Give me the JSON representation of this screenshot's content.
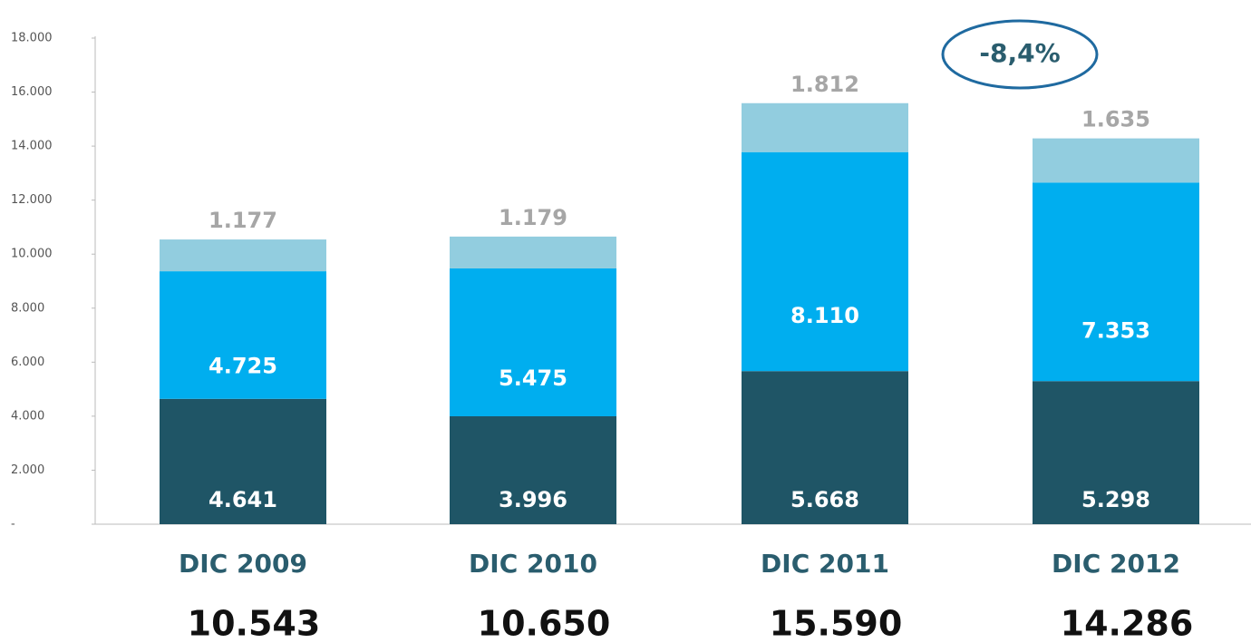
{
  "chart_data": {
    "type": "stacked_bar",
    "categories": [
      "DIC 2009",
      "DIC 2010",
      "DIC 2011",
      "DIC 2012"
    ],
    "series": [
      {
        "color": "#1f5566",
        "values": [
          4641,
          3996,
          5668,
          5298
        ],
        "value_labels": [
          "4.641",
          "3.996",
          "5.668",
          "5.298"
        ]
      },
      {
        "color": "#00aeef",
        "values": [
          4725,
          5475,
          8110,
          7353
        ],
        "value_labels": [
          "4.725",
          "5.475",
          "8.110",
          "7.353"
        ]
      },
      {
        "color": "#92cddf",
        "values": [
          1177,
          1179,
          1812,
          1635
        ],
        "value_labels": [
          "1.177",
          "1.179",
          "1.812",
          "1.635"
        ]
      }
    ],
    "totals": {
      "values": [
        10543,
        10650,
        15590,
        14286
      ],
      "value_labels": [
        "10.543",
        "10.650",
        "15.590",
        "14.286"
      ]
    },
    "annotation": "-8,4%",
    "ylim": [
      0,
      18000
    ],
    "yticks": [
      {
        "value": 0,
        "label": "-"
      },
      {
        "value": 2000,
        "label": "2.000"
      },
      {
        "value": 4000,
        "label": "4.000"
      },
      {
        "value": 6000,
        "label": "6.000"
      },
      {
        "value": 8000,
        "label": "8.000"
      },
      {
        "value": 10000,
        "label": "10.000"
      },
      {
        "value": 12000,
        "label": "12.000"
      },
      {
        "value": 14000,
        "label": "14.000"
      },
      {
        "value": 16000,
        "label": "16.000"
      },
      {
        "value": 18000,
        "label": "18.000"
      }
    ],
    "grid": false
  }
}
